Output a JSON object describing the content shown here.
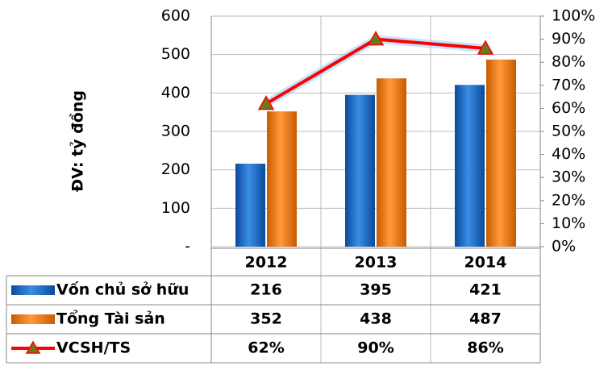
{
  "chart_data": {
    "type": "bar",
    "y_axis_label": "ĐV: tỷ đồng",
    "categories": [
      "2012",
      "2013",
      "2014"
    ],
    "series": [
      {
        "name": "Vốn chủ sở hữu",
        "color": "#1f6fc8",
        "values": [
          216,
          395,
          421
        ]
      },
      {
        "name": "Tổng Tài sản",
        "color": "#f07a10",
        "values": [
          352,
          438,
          487
        ]
      },
      {
        "name": "VCSH/TS",
        "color": "#ff0000",
        "type": "line",
        "axis": "y2",
        "values": [
          62,
          90,
          86
        ],
        "value_labels": [
          "62%",
          "90%",
          "86%"
        ]
      }
    ],
    "ylim": [
      0,
      600
    ],
    "yticks": [
      {
        "value": 0,
        "label": "-"
      },
      100,
      200,
      300,
      400,
      500,
      600
    ],
    "y2lim": [
      0,
      100
    ],
    "y2ticks": [
      {
        "value": 0,
        "label": "0%"
      },
      {
        "value": 10,
        "label": "10%"
      },
      {
        "value": 20,
        "label": "20%"
      },
      {
        "value": 30,
        "label": "30%"
      },
      {
        "value": 40,
        "label": "40%"
      },
      {
        "value": 50,
        "label": "50%"
      },
      {
        "value": 60,
        "label": "60%"
      },
      {
        "value": 70,
        "label": "70%"
      },
      {
        "value": 80,
        "label": "80%"
      },
      {
        "value": 90,
        "label": "90%"
      },
      {
        "value": 100,
        "label": "100%"
      }
    ],
    "grid": true,
    "data_table": true
  }
}
